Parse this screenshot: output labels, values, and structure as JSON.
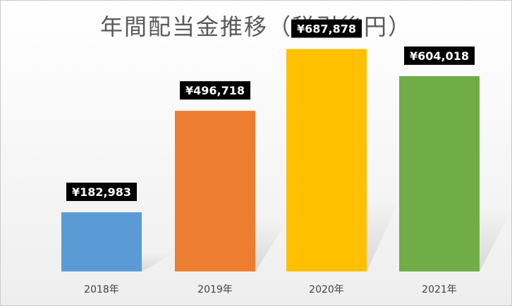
{
  "chart_data": {
    "type": "bar",
    "title": "年間配当金推移（税引後円）",
    "categories": [
      "2018年",
      "2019年",
      "2020年",
      "2021年"
    ],
    "values": [
      182983,
      496718,
      687878,
      604018
    ],
    "value_labels": [
      "¥182,983",
      "¥496,718",
      "¥687,878",
      "¥604,018"
    ],
    "colors": [
      "#5b9bd5",
      "#ed7d31",
      "#ffc000",
      "#70ad47"
    ],
    "ylim": [
      0,
      750000
    ],
    "grid": false,
    "legend": "none",
    "data_label_background": "#000000",
    "data_label_color": "#ffffff"
  }
}
